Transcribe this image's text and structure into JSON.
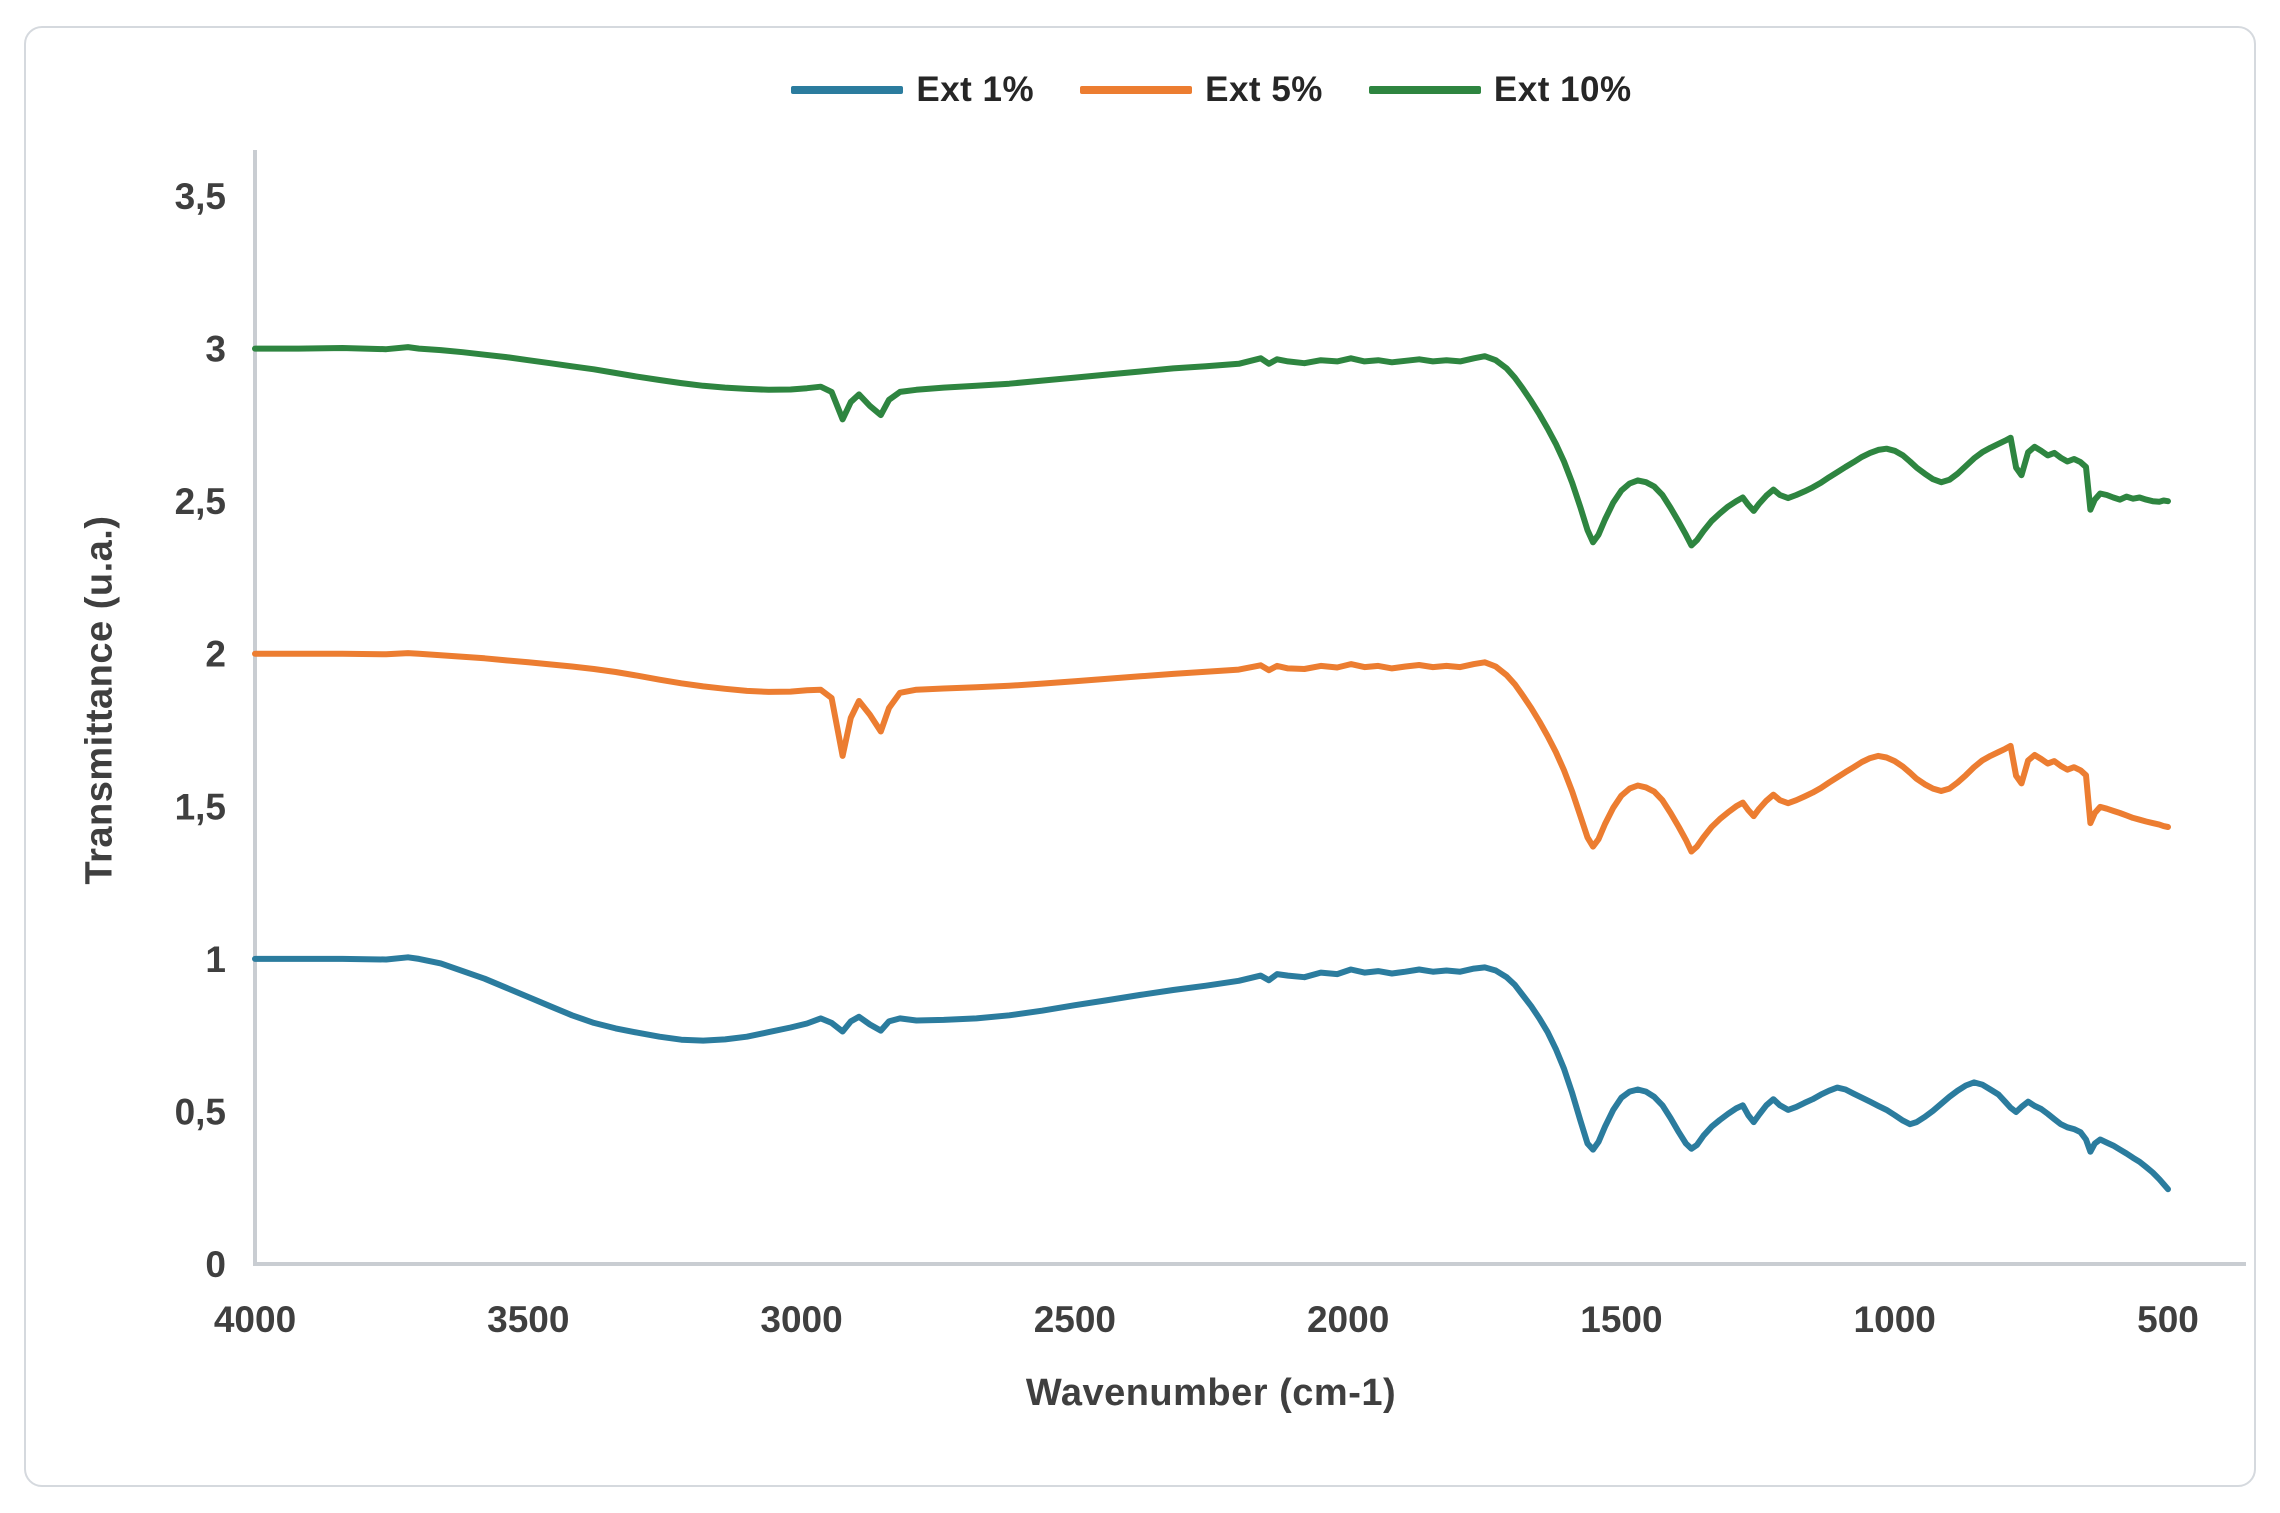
{
  "legend": {
    "items": [
      {
        "label": "Ext 1%",
        "color": "#2b7c9e"
      },
      {
        "label": "Ext 5%",
        "color": "#ec7d31"
      },
      {
        "label": "Ext 10%",
        "color": "#2e8540"
      }
    ]
  },
  "axes": {
    "x_title": "Wavenumber (cm-1)",
    "y_title": "Transmittance (u.a.)"
  },
  "chart_data": {
    "type": "line",
    "title": "",
    "xlabel": "Wavenumber (cm-1)",
    "ylabel": "Transmittance (u.a.)",
    "grid": false,
    "legend_position": "top-center",
    "x_axis": {
      "min": 500,
      "max": 4000,
      "reversed": true,
      "tick_values": [
        4000,
        3500,
        3000,
        2500,
        2000,
        1500,
        1000,
        500
      ],
      "tick_labels": [
        "4000",
        "3500",
        "3000",
        "2500",
        "2000",
        "1500",
        "1000",
        "500"
      ]
    },
    "y_axis": {
      "min": 0,
      "max": 3.5,
      "tick_values": [
        0,
        0.5,
        1,
        1.5,
        2,
        2.5,
        3,
        3.5
      ],
      "tick_labels": [
        "0",
        "0,5",
        "1",
        "1,5",
        "2",
        "2,5",
        "3",
        "3,5"
      ]
    },
    "x": [
      4000,
      3920,
      3840,
      3760,
      3720,
      3700,
      3660,
      3620,
      3580,
      3540,
      3500,
      3460,
      3420,
      3380,
      3340,
      3300,
      3260,
      3220,
      3180,
      3140,
      3100,
      3060,
      3020,
      2990,
      2965,
      2945,
      2925,
      2910,
      2895,
      2875,
      2855,
      2840,
      2820,
      2790,
      2740,
      2680,
      2620,
      2560,
      2500,
      2440,
      2380,
      2320,
      2260,
      2200,
      2160,
      2145,
      2130,
      2110,
      2080,
      2050,
      2020,
      1995,
      1970,
      1945,
      1920,
      1895,
      1870,
      1845,
      1820,
      1795,
      1770,
      1750,
      1730,
      1710,
      1695,
      1680,
      1665,
      1650,
      1635,
      1620,
      1605,
      1590,
      1575,
      1562,
      1552,
      1542,
      1530,
      1515,
      1500,
      1485,
      1470,
      1455,
      1440,
      1425,
      1410,
      1395,
      1382,
      1372,
      1362,
      1350,
      1335,
      1320,
      1305,
      1290,
      1278,
      1268,
      1258,
      1248,
      1235,
      1222,
      1210,
      1195,
      1180,
      1165,
      1150,
      1135,
      1120,
      1105,
      1090,
      1075,
      1060,
      1045,
      1030,
      1015,
      1000,
      985,
      972,
      960,
      945,
      930,
      915,
      900,
      885,
      870,
      855,
      840,
      825,
      810,
      798,
      788,
      778,
      768,
      756,
      744,
      732,
      720,
      708,
      696,
      684,
      672,
      660,
      650,
      642,
      634,
      624,
      612,
      600,
      588,
      576,
      564,
      552,
      540,
      528,
      516,
      508,
      500
    ],
    "series": [
      {
        "name": "Ext 1%",
        "color": "#2b7c9e",
        "values": [
          1.0,
          1.0,
          1.0,
          0.998,
          1.005,
          1.0,
          0.985,
          0.96,
          0.935,
          0.905,
          0.875,
          0.845,
          0.815,
          0.79,
          0.772,
          0.758,
          0.745,
          0.735,
          0.732,
          0.736,
          0.745,
          0.76,
          0.775,
          0.788,
          0.805,
          0.79,
          0.762,
          0.795,
          0.81,
          0.785,
          0.765,
          0.795,
          0.805,
          0.798,
          0.8,
          0.805,
          0.815,
          0.83,
          0.848,
          0.865,
          0.882,
          0.898,
          0.912,
          0.928,
          0.945,
          0.93,
          0.95,
          0.945,
          0.94,
          0.955,
          0.95,
          0.965,
          0.955,
          0.96,
          0.952,
          0.958,
          0.965,
          0.958,
          0.962,
          0.958,
          0.968,
          0.972,
          0.962,
          0.94,
          0.915,
          0.88,
          0.845,
          0.805,
          0.76,
          0.705,
          0.64,
          0.56,
          0.47,
          0.395,
          0.375,
          0.4,
          0.45,
          0.505,
          0.545,
          0.565,
          0.572,
          0.565,
          0.548,
          0.52,
          0.478,
          0.432,
          0.395,
          0.378,
          0.39,
          0.42,
          0.45,
          0.472,
          0.492,
          0.51,
          0.52,
          0.488,
          0.465,
          0.49,
          0.52,
          0.54,
          0.52,
          0.505,
          0.515,
          0.528,
          0.54,
          0.555,
          0.568,
          0.578,
          0.572,
          0.558,
          0.545,
          0.532,
          0.518,
          0.505,
          0.488,
          0.47,
          0.458,
          0.465,
          0.482,
          0.502,
          0.525,
          0.548,
          0.568,
          0.585,
          0.595,
          0.588,
          0.572,
          0.555,
          0.532,
          0.512,
          0.498,
          0.515,
          0.532,
          0.518,
          0.508,
          0.492,
          0.475,
          0.458,
          0.448,
          0.442,
          0.432,
          0.408,
          0.368,
          0.395,
          0.408,
          0.398,
          0.388,
          0.375,
          0.362,
          0.348,
          0.335,
          0.318,
          0.3,
          0.278,
          0.262,
          0.245
        ]
      },
      {
        "name": "Ext 5%",
        "color": "#ec7d31",
        "values": [
          2.0,
          2.0,
          2.0,
          1.998,
          2.002,
          2.0,
          1.995,
          1.99,
          1.985,
          1.978,
          1.972,
          1.965,
          1.958,
          1.95,
          1.94,
          1.928,
          1.915,
          1.903,
          1.893,
          1.885,
          1.878,
          1.875,
          1.876,
          1.88,
          1.882,
          1.855,
          1.665,
          1.79,
          1.845,
          1.8,
          1.745,
          1.822,
          1.872,
          1.882,
          1.886,
          1.89,
          1.895,
          1.902,
          1.91,
          1.918,
          1.926,
          1.934,
          1.941,
          1.948,
          1.962,
          1.946,
          1.96,
          1.952,
          1.95,
          1.96,
          1.955,
          1.966,
          1.956,
          1.96,
          1.952,
          1.958,
          1.963,
          1.956,
          1.96,
          1.956,
          1.966,
          1.972,
          1.958,
          1.93,
          1.9,
          1.862,
          1.822,
          1.778,
          1.73,
          1.678,
          1.618,
          1.548,
          1.468,
          1.398,
          1.368,
          1.392,
          1.442,
          1.495,
          1.535,
          1.558,
          1.568,
          1.562,
          1.548,
          1.52,
          1.478,
          1.432,
          1.39,
          1.352,
          1.368,
          1.398,
          1.432,
          1.458,
          1.48,
          1.5,
          1.512,
          1.488,
          1.468,
          1.492,
          1.518,
          1.538,
          1.52,
          1.51,
          1.52,
          1.532,
          1.545,
          1.56,
          1.578,
          1.595,
          1.612,
          1.628,
          1.645,
          1.658,
          1.665,
          1.66,
          1.648,
          1.63,
          1.61,
          1.59,
          1.572,
          1.558,
          1.55,
          1.558,
          1.578,
          1.602,
          1.628,
          1.65,
          1.665,
          1.678,
          1.688,
          1.698,
          1.6,
          1.575,
          1.65,
          1.668,
          1.655,
          1.64,
          1.648,
          1.632,
          1.62,
          1.628,
          1.618,
          1.602,
          1.445,
          1.478,
          1.498,
          1.492,
          1.485,
          1.478,
          1.47,
          1.462,
          1.456,
          1.45,
          1.445,
          1.44,
          1.435,
          1.432
        ]
      },
      {
        "name": "Ext 10%",
        "color": "#2e8540",
        "values": [
          3.0,
          3.0,
          3.002,
          2.998,
          3.005,
          3.0,
          2.995,
          2.988,
          2.98,
          2.972,
          2.962,
          2.952,
          2.942,
          2.932,
          2.92,
          2.908,
          2.897,
          2.887,
          2.878,
          2.872,
          2.868,
          2.865,
          2.866,
          2.87,
          2.875,
          2.858,
          2.768,
          2.825,
          2.85,
          2.812,
          2.782,
          2.832,
          2.858,
          2.865,
          2.872,
          2.878,
          2.885,
          2.895,
          2.905,
          2.915,
          2.925,
          2.935,
          2.942,
          2.95,
          2.968,
          2.95,
          2.965,
          2.958,
          2.952,
          2.962,
          2.958,
          2.968,
          2.958,
          2.962,
          2.955,
          2.96,
          2.965,
          2.958,
          2.962,
          2.958,
          2.968,
          2.975,
          2.962,
          2.935,
          2.905,
          2.868,
          2.828,
          2.785,
          2.738,
          2.688,
          2.63,
          2.56,
          2.48,
          2.405,
          2.365,
          2.39,
          2.44,
          2.495,
          2.535,
          2.558,
          2.568,
          2.562,
          2.548,
          2.52,
          2.478,
          2.432,
          2.39,
          2.355,
          2.372,
          2.402,
          2.435,
          2.46,
          2.482,
          2.5,
          2.512,
          2.488,
          2.468,
          2.492,
          2.518,
          2.538,
          2.52,
          2.51,
          2.52,
          2.532,
          2.545,
          2.56,
          2.578,
          2.595,
          2.612,
          2.628,
          2.645,
          2.658,
          2.668,
          2.672,
          2.665,
          2.65,
          2.63,
          2.61,
          2.59,
          2.572,
          2.562,
          2.57,
          2.59,
          2.615,
          2.64,
          2.66,
          2.675,
          2.688,
          2.698,
          2.708,
          2.61,
          2.585,
          2.66,
          2.678,
          2.665,
          2.65,
          2.658,
          2.642,
          2.63,
          2.638,
          2.628,
          2.612,
          2.472,
          2.505,
          2.525,
          2.52,
          2.512,
          2.505,
          2.515,
          2.508,
          2.512,
          2.505,
          2.5,
          2.498,
          2.502,
          2.5
        ]
      }
    ]
  }
}
